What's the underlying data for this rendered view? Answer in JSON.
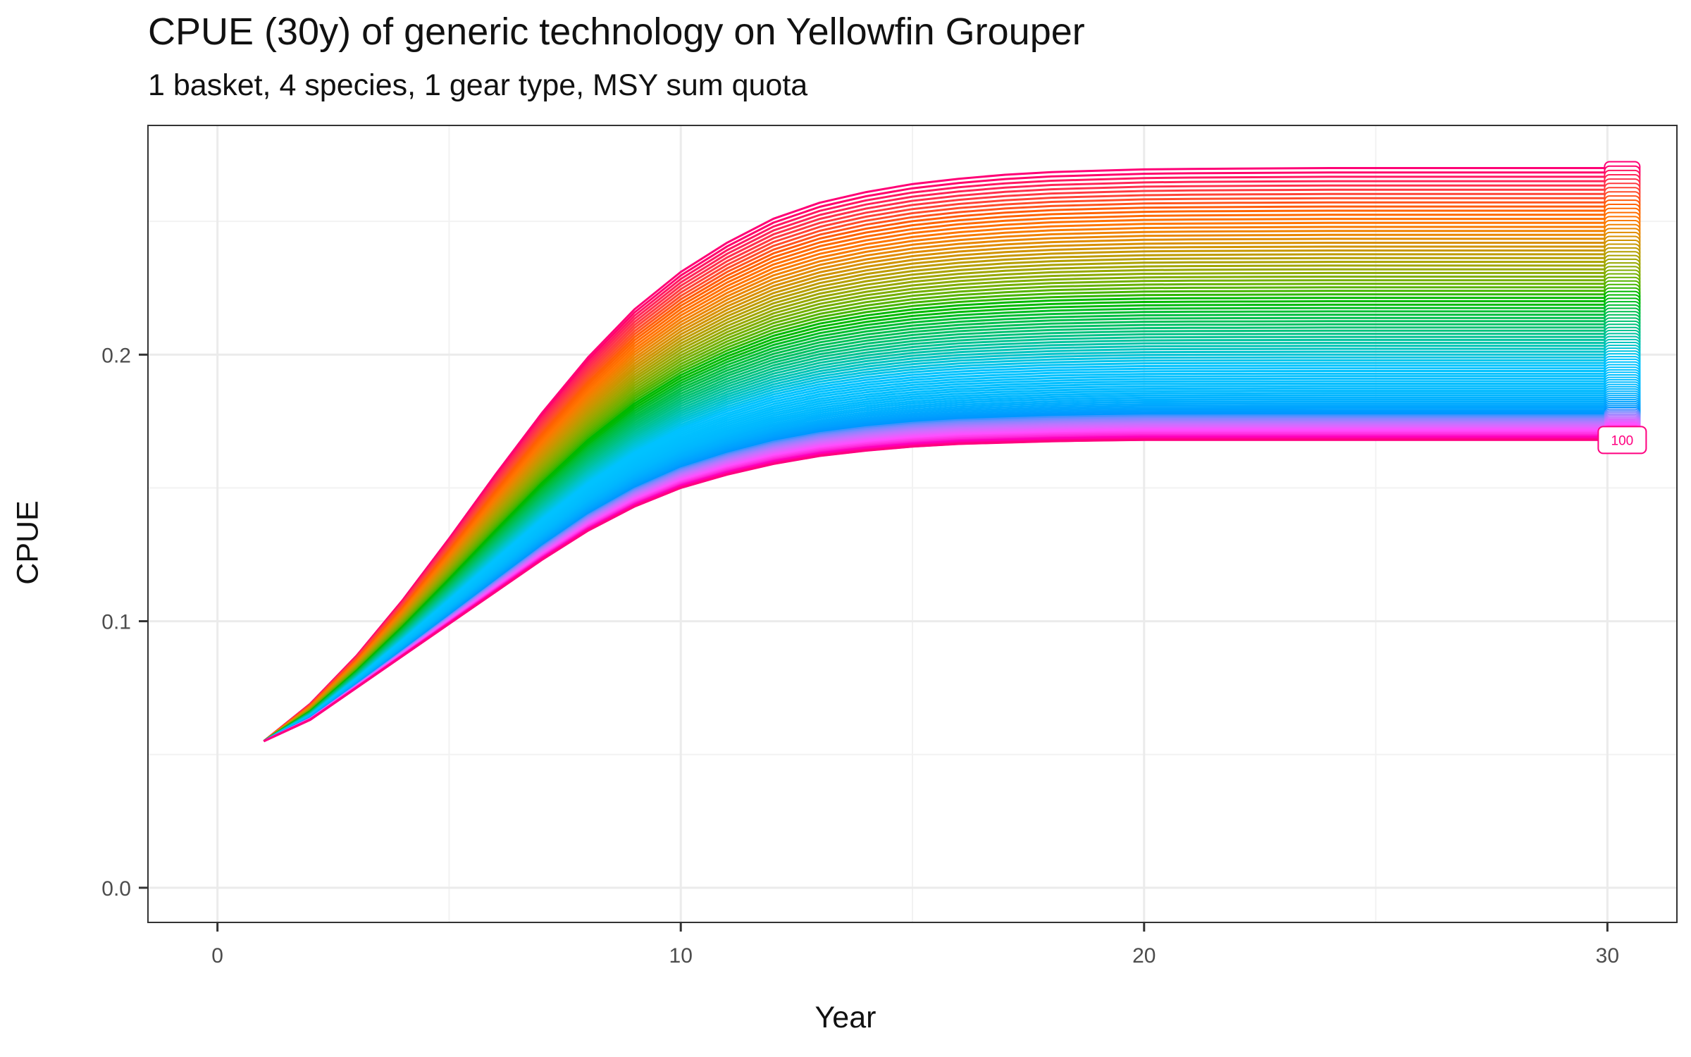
{
  "chart_data": {
    "type": "line",
    "title": "CPUE (30y) of generic technology on Yellowfin Grouper",
    "subtitle": "1 basket, 4 species, 1 gear type, MSY sum quota",
    "xlabel": "Year",
    "ylabel": "CPUE",
    "xlim": [
      -1.5,
      31.5
    ],
    "ylim": [
      -0.013,
      0.286
    ],
    "x_ticks": [
      0,
      10,
      20,
      30
    ],
    "y_ticks": [
      0.0,
      0.1,
      0.2
    ],
    "x_tick_labels": [
      "0",
      "10",
      "20",
      "30"
    ],
    "y_tick_labels": [
      "0.0",
      "0.1",
      "0.2"
    ],
    "grid": true,
    "legend": "none",
    "series_count": 100,
    "color_scheme": "hue palette, one colour per series",
    "x": [
      1,
      2,
      3,
      4,
      5,
      6,
      7,
      8,
      9,
      10,
      11,
      12,
      13,
      14,
      15,
      16,
      17,
      18,
      19,
      20,
      21,
      22,
      23,
      24,
      25,
      26,
      27,
      28,
      29,
      30
    ],
    "bounding_series": [
      {
        "role": "upper envelope",
        "values": [
          0.055,
          0.069,
          0.087,
          0.108,
          0.131,
          0.155,
          0.178,
          0.199,
          0.217,
          0.231,
          0.242,
          0.251,
          0.257,
          0.261,
          0.264,
          0.266,
          0.2675,
          0.2685,
          0.269,
          0.2695,
          0.2697,
          0.2698,
          0.2699,
          0.27,
          0.27,
          0.27,
          0.27,
          0.27,
          0.27,
          0.27
        ]
      },
      {
        "role": "lower envelope",
        "values": [
          0.055,
          0.063,
          0.075,
          0.087,
          0.099,
          0.111,
          0.123,
          0.134,
          0.143,
          0.15,
          0.155,
          0.159,
          0.162,
          0.164,
          0.1655,
          0.1665,
          0.167,
          0.1675,
          0.1678,
          0.168,
          0.168,
          0.168,
          0.168,
          0.168,
          0.168,
          0.168,
          0.168,
          0.168,
          0.168,
          0.168
        ]
      }
    ],
    "end_label": {
      "text": "100",
      "color": "#F8766D"
    }
  }
}
